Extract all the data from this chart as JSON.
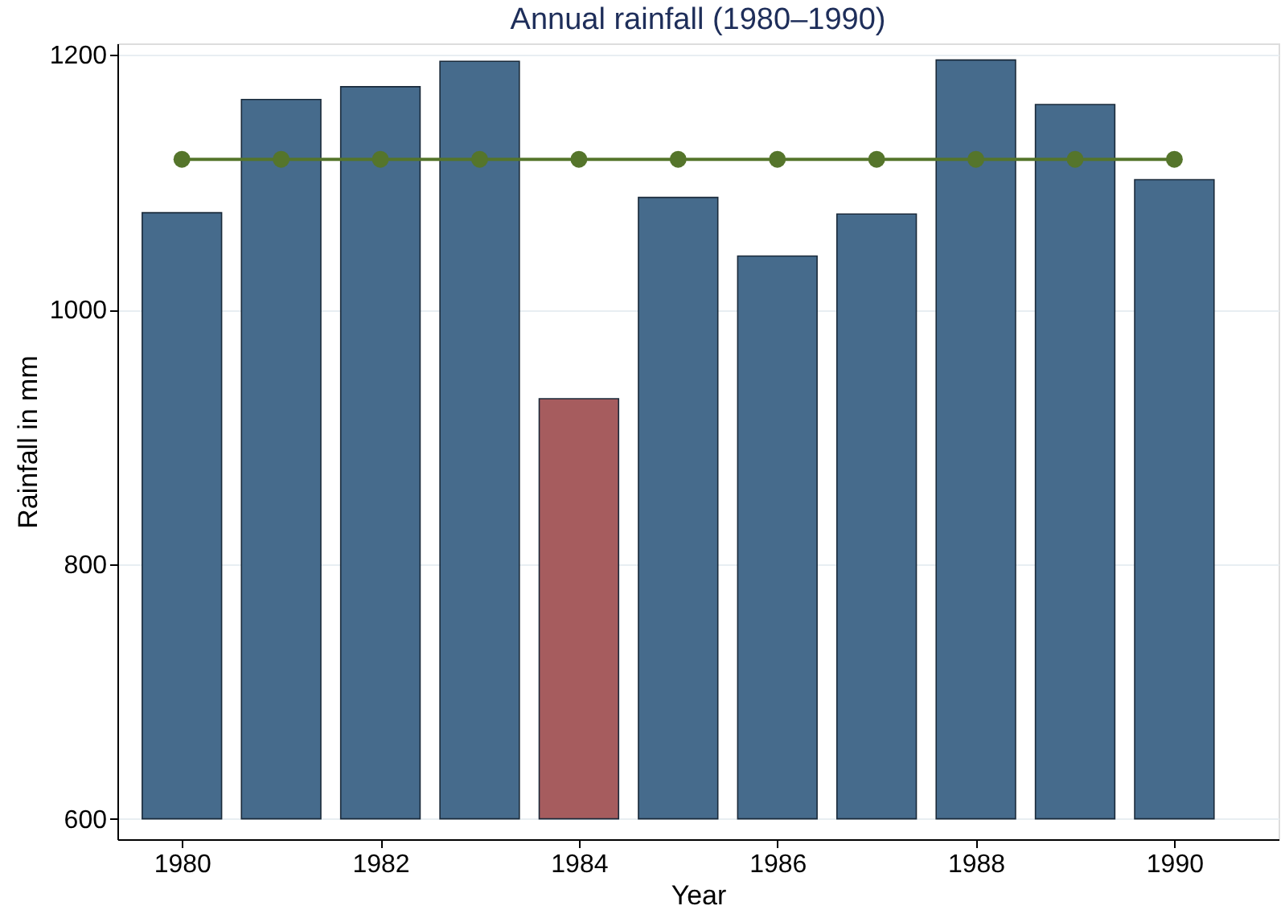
{
  "chart_data": {
    "type": "bar",
    "title": "Annual rainfall (1980–1990)",
    "xlabel": "Year",
    "ylabel": "Rainfall in mm",
    "x": [
      1980,
      1981,
      1982,
      1983,
      1984,
      1985,
      1986,
      1987,
      1988,
      1989,
      1990
    ],
    "xlim": [
      1979.35,
      1991.05
    ],
    "xticks": [
      1980,
      1982,
      1984,
      1986,
      1988,
      1990
    ],
    "ylim": [
      584,
      1209
    ],
    "yticks": [
      600,
      800,
      1000,
      1200
    ],
    "grid": "y",
    "series": [
      {
        "type": "bar",
        "base": [
          600,
          600,
          600,
          600,
          600,
          600,
          600,
          600,
          600,
          600,
          600
        ],
        "values": [
          476,
          565,
          575,
          595,
          330,
          488,
          442,
          475,
          596,
          561,
          502
        ],
        "colors": [
          "#466b8c",
          "#466b8c",
          "#466b8c",
          "#466b8c",
          "#a65c5e",
          "#466b8c",
          "#466b8c",
          "#466b8c",
          "#466b8c",
          "#466b8c",
          "#466b8c"
        ]
      },
      {
        "type": "line",
        "color": "#55752b",
        "marker": "circle",
        "line_style": "solid",
        "values": [
          1118,
          1118,
          1118,
          1118,
          1118,
          1118,
          1118,
          1118,
          1118,
          1118,
          1118
        ]
      }
    ]
  }
}
